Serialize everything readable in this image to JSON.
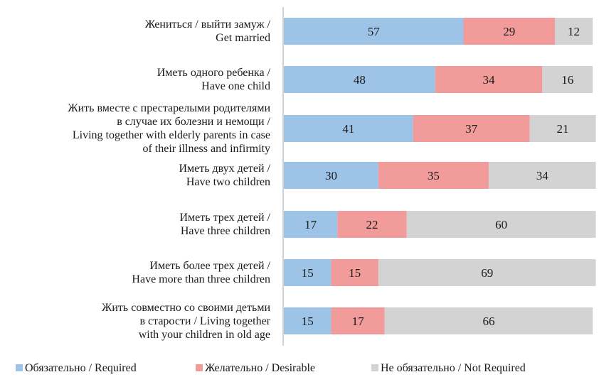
{
  "chart_data": {
    "type": "bar",
    "orientation": "horizontal",
    "stacked": true,
    "xlim": [
      0,
      100
    ],
    "grid": false,
    "legend_position": "bottom",
    "categories": [
      "Жениться / выйти замуж / Get married",
      "Иметь одного ребенка / Have one child",
      "Жить вместе с престарелыми родителями в случае их болезни и немощи / Living together with elderly parents in case of their illness and infirmity",
      "Иметь двух детей / Have two children",
      "Иметь трех детей / Have three children",
      "Иметь более трех детей / Have more than three children",
      "Жить совместно со своими детьми в старости / Living together with your children in old age"
    ],
    "category_lines": [
      [
        "Жениться / выйти замуж /",
        "Get married"
      ],
      [
        "Иметь одного ребенка /",
        "Have one child"
      ],
      [
        "Жить вместе с престарелыми родителями",
        "в случае их болезни и немощи /",
        "Living together with elderly parents in case",
        "of their illness and infirmity"
      ],
      [
        "Иметь двух детей /",
        "Have two children"
      ],
      [
        "Иметь трех детей /",
        "Have three children"
      ],
      [
        "Иметь более трех детей /",
        "Have more than three children"
      ],
      [
        "Жить совместно со своими детьми",
        "в старости / Living together",
        "with your children in old age"
      ]
    ],
    "series": [
      {
        "name": "Обязательно / Required",
        "color": "#9dc3e6",
        "values": [
          57,
          48,
          41,
          30,
          17,
          15,
          15
        ]
      },
      {
        "name": "Желательно / Desirable",
        "color": "#f19c9b",
        "values": [
          29,
          34,
          37,
          35,
          22,
          15,
          17
        ]
      },
      {
        "name": "Не обязательно / Not Required",
        "color": "#d3d3d3",
        "values": [
          12,
          16,
          21,
          34,
          60,
          69,
          66
        ]
      }
    ]
  }
}
